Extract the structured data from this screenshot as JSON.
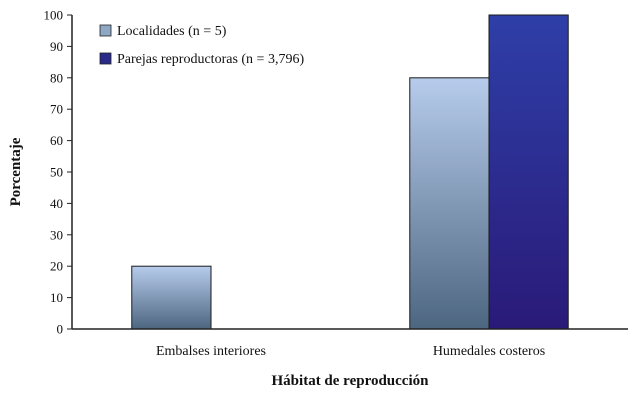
{
  "chart_data": {
    "type": "bar",
    "categories": [
      "Embalses interiores",
      "Humedales costeros"
    ],
    "series": [
      {
        "name": "Localidades (n = 5)",
        "values": [
          20,
          80
        ],
        "color_top": "#b7ccec",
        "color_bottom": "#4d6680"
      },
      {
        "name": "Parejas reproductoras (n = 3,796)",
        "values": [
          0,
          100
        ],
        "color_top": "#2e3fa8",
        "color_bottom": "#2a1a78"
      }
    ],
    "xlabel": "Hábitat de reproducción",
    "ylabel": "Porcentaje",
    "ylim": [
      0,
      100
    ],
    "yticks": [
      0,
      10,
      20,
      30,
      40,
      50,
      60,
      70,
      80,
      90,
      100
    ],
    "grid": false,
    "legend_position": "top-left",
    "legend_marker_colors": [
      "#8ea7c2",
      "#2a2a8a"
    ]
  }
}
